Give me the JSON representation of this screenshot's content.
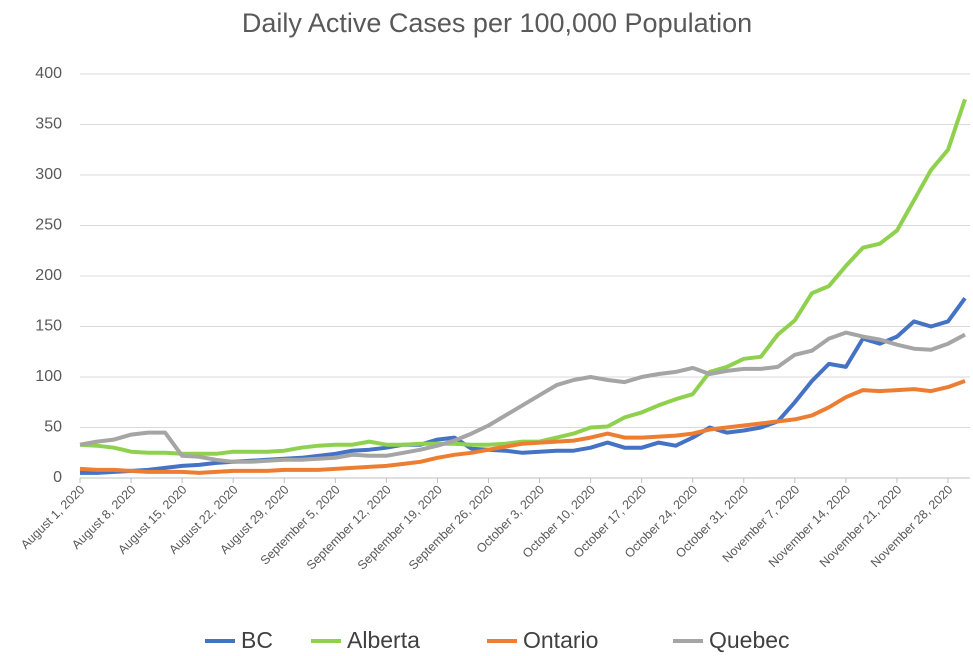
{
  "chart_data": {
    "type": "line",
    "title": "Daily Active Cases per 100,000 Population",
    "categories": [
      "August 1, 2020",
      null,
      null,
      "August 8, 2020",
      null,
      null,
      "August 15, 2020",
      null,
      null,
      "August 22, 2020",
      null,
      null,
      "August 29, 2020",
      null,
      null,
      "September 5, 2020",
      null,
      null,
      "September 12, 2020",
      null,
      null,
      "September 19, 2020",
      null,
      null,
      "September 26, 2020",
      null,
      null,
      "October 3, 2020",
      null,
      null,
      "October 10, 2020",
      null,
      null,
      "October 17, 2020",
      null,
      null,
      "October 24, 2020",
      null,
      null,
      "October 31, 2020",
      null,
      null,
      "November 7, 2020",
      null,
      null,
      "November 14, 2020",
      null,
      null,
      "November 21, 2020",
      null,
      null,
      "November 28, 2020",
      null
    ],
    "series": [
      {
        "name": "BC",
        "color": "#4472c4",
        "values": [
          5,
          5,
          6,
          7,
          8,
          10,
          12,
          13,
          15,
          16,
          17,
          18,
          19,
          20,
          22,
          24,
          27,
          28,
          30,
          33,
          33,
          38,
          40,
          29,
          28,
          27,
          25,
          26,
          27,
          27,
          30,
          35,
          30,
          30,
          35,
          32,
          40,
          50,
          45,
          47,
          50,
          56,
          75,
          96,
          113,
          110,
          138,
          133,
          140,
          155,
          150,
          155,
          178
        ]
      },
      {
        "name": "Alberta",
        "color": "#8fd14f",
        "values": [
          33,
          32,
          30,
          26,
          25,
          25,
          24,
          24,
          24,
          26,
          26,
          26,
          27,
          30,
          32,
          33,
          33,
          36,
          33,
          33,
          34,
          34,
          34,
          33,
          33,
          34,
          36,
          36,
          40,
          44,
          50,
          51,
          60,
          65,
          72,
          78,
          83,
          105,
          110,
          118,
          120,
          142,
          156,
          183,
          190,
          210,
          228,
          232,
          245,
          275,
          305,
          325,
          375
        ]
      },
      {
        "name": "Ontario",
        "color": "#ed7d31",
        "values": [
          9,
          8,
          8,
          7,
          6,
          6,
          6,
          5,
          6,
          7,
          7,
          7,
          8,
          8,
          8,
          9,
          10,
          11,
          12,
          14,
          16,
          20,
          23,
          25,
          28,
          31,
          34,
          35,
          36,
          37,
          40,
          44,
          40,
          40,
          41,
          42,
          44,
          48,
          50,
          52,
          54,
          56,
          58,
          62,
          70,
          80,
          87,
          86,
          87,
          88,
          86,
          90,
          96
        ]
      },
      {
        "name": "Quebec",
        "color": "#a5a5a5",
        "values": [
          33,
          36,
          38,
          43,
          45,
          45,
          22,
          21,
          18,
          16,
          16,
          17,
          18,
          18,
          19,
          20,
          23,
          22,
          22,
          25,
          28,
          32,
          37,
          44,
          52,
          62,
          72,
          82,
          92,
          97,
          100,
          97,
          95,
          100,
          103,
          105,
          109,
          103,
          106,
          108,
          108,
          110,
          122,
          126,
          138,
          144,
          140,
          137,
          132,
          128,
          127,
          133,
          142
        ]
      }
    ],
    "ylim": [
      0,
      400
    ],
    "yticks": [
      0,
      50,
      100,
      150,
      200,
      250,
      300,
      350,
      400
    ],
    "grid": true,
    "legend": "bottom"
  }
}
